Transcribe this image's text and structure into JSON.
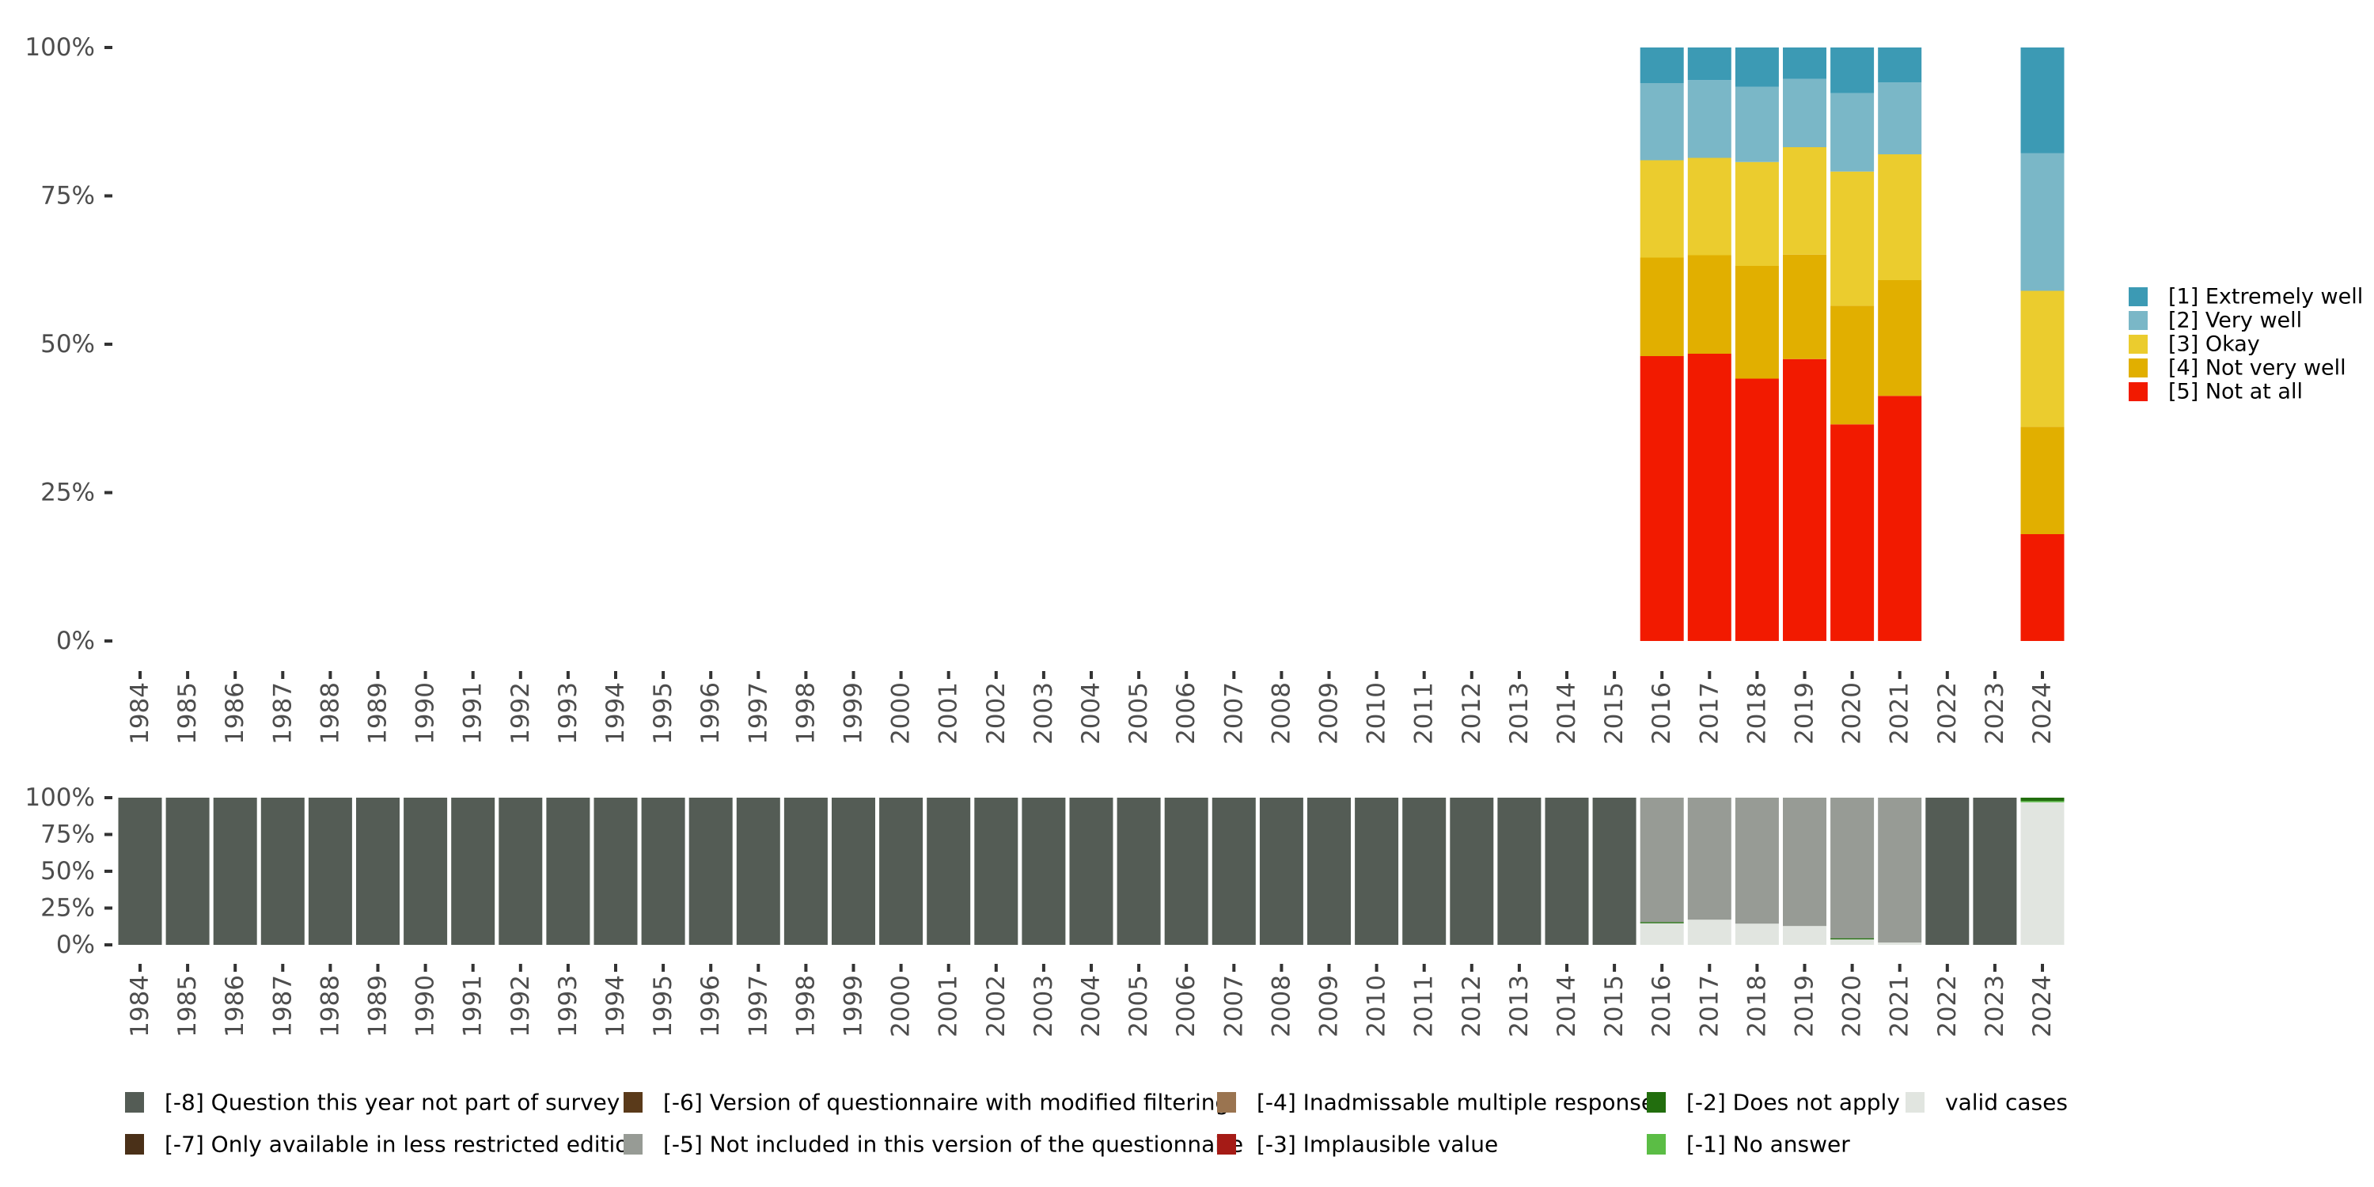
{
  "chart_data": [
    {
      "type": "bar",
      "stacked": true,
      "title": "",
      "xlabel": "",
      "ylabel": "",
      "ylim": [
        0,
        100
      ],
      "yticks": [
        "0%",
        "25%",
        "50%",
        "75%",
        "100%"
      ],
      "categories": [
        "1984",
        "1985",
        "1986",
        "1987",
        "1988",
        "1989",
        "1990",
        "1991",
        "1992",
        "1993",
        "1994",
        "1995",
        "1996",
        "1997",
        "1998",
        "1999",
        "2000",
        "2001",
        "2002",
        "2003",
        "2004",
        "2005",
        "2006",
        "2007",
        "2008",
        "2009",
        "2010",
        "2011",
        "2012",
        "2013",
        "2014",
        "2015",
        "2016",
        "2017",
        "2018",
        "2019",
        "2020",
        "2021",
        "2022",
        "2023",
        "2024"
      ],
      "legend_position": "right",
      "series": [
        {
          "name": "[5] Not at all",
          "color": "#f21a00",
          "values": {
            "2016": 48.0,
            "2017": 48.4,
            "2018": 44.2,
            "2019": 47.5,
            "2020": 36.5,
            "2021": 41.3,
            "2024": 18.0
          }
        },
        {
          "name": "[4] Not very well",
          "color": "#e1af00",
          "values": {
            "2016": 16.6,
            "2017": 16.6,
            "2018": 19.0,
            "2019": 17.6,
            "2020": 20.0,
            "2021": 19.5,
            "2024": 18.1
          }
        },
        {
          "name": "[3] Okay",
          "color": "#ebcc2e",
          "values": {
            "2016": 16.4,
            "2017": 16.4,
            "2018": 17.5,
            "2019": 18.1,
            "2020": 22.6,
            "2021": 21.2,
            "2024": 22.9
          }
        },
        {
          "name": "[2] Very well",
          "color": "#7ab7c7",
          "values": {
            "2016": 13.0,
            "2017": 13.1,
            "2018": 12.7,
            "2019": 11.5,
            "2020": 13.2,
            "2021": 12.1,
            "2024": 23.2
          }
        },
        {
          "name": "[1] Extremely well",
          "color": "#3c9ab4",
          "values": {
            "2016": 6.0,
            "2017": 5.5,
            "2018": 6.6,
            "2019": 5.3,
            "2020": 7.7,
            "2021": 5.9,
            "2024": 17.8
          }
        }
      ]
    },
    {
      "type": "bar",
      "stacked": true,
      "title": "",
      "xlabel": "",
      "ylabel": "",
      "ylim": [
        0,
        100
      ],
      "yticks": [
        "0%",
        "25%",
        "50%",
        "75%",
        "100%"
      ],
      "categories": [
        "1984",
        "1985",
        "1986",
        "1987",
        "1988",
        "1989",
        "1990",
        "1991",
        "1992",
        "1993",
        "1994",
        "1995",
        "1996",
        "1997",
        "1998",
        "1999",
        "2000",
        "2001",
        "2002",
        "2003",
        "2004",
        "2005",
        "2006",
        "2007",
        "2008",
        "2009",
        "2010",
        "2011",
        "2012",
        "2013",
        "2014",
        "2015",
        "2016",
        "2017",
        "2018",
        "2019",
        "2020",
        "2021",
        "2022",
        "2023",
        "2024"
      ],
      "legend_position": "bottom",
      "series": [
        {
          "name": "valid cases",
          "color": "#e1e5e0",
          "values": {
            "2016": 15.2,
            "2017": 17.1,
            "2018": 14.4,
            "2019": 12.8,
            "2020": 4.1,
            "2021": 1.6,
            "2024": 97.3
          }
        },
        {
          "name": "[-1] No answer",
          "color": "#5bbd45",
          "values": {
            "2024": 0.4
          }
        },
        {
          "name": "[-2] Does not apply",
          "color": "#226e0e",
          "values": {
            "2016": 0.3,
            "2020": 0.4,
            "2024": 2.3
          }
        },
        {
          "name": "[-3] Implausible value",
          "color": "#a51b16",
          "values": {}
        },
        {
          "name": "[-4] Inadmissable multiple response",
          "color": "#9a7450",
          "values": {}
        },
        {
          "name": "[-5] Not included in this version of the questionnaire",
          "color": "#979b95",
          "values": {
            "2016": 84.5,
            "2017": 82.9,
            "2018": 85.6,
            "2019": 87.2,
            "2020": 95.5,
            "2021": 98.4
          }
        },
        {
          "name": "[-6] Version of questionnaire with modified filtering",
          "color": "#5a3a1a",
          "values": {}
        },
        {
          "name": "[-7] Only available in less restricted edition",
          "color": "#4a3018",
          "values": {}
        },
        {
          "name": "[-8] Question this year not part of survey",
          "color": "#545c55",
          "values": {
            "1984": 100,
            "1985": 100,
            "1986": 100,
            "1987": 100,
            "1988": 100,
            "1989": 100,
            "1990": 100,
            "1991": 100,
            "1992": 100,
            "1993": 100,
            "1994": 100,
            "1995": 100,
            "1996": 100,
            "1997": 100,
            "1998": 100,
            "1999": 100,
            "2000": 100,
            "2001": 100,
            "2002": 100,
            "2003": 100,
            "2004": 100,
            "2005": 100,
            "2006": 100,
            "2007": 100,
            "2008": 100,
            "2009": 100,
            "2010": 100,
            "2011": 100,
            "2012": 100,
            "2013": 100,
            "2014": 100,
            "2015": 100,
            "2022": 100,
            "2023": 100
          }
        }
      ],
      "legend_order": [
        "[-8] Question this year not part of survey",
        "[-7] Only available in less restricted edition",
        "[-6] Version of questionnaire with modified filtering",
        "[-5] Not included in this version of the questionnaire",
        "[-4] Inadmissable multiple response",
        "[-3] Implausible value",
        "[-2] Does not apply",
        "[-1] No answer",
        "valid cases"
      ]
    }
  ]
}
